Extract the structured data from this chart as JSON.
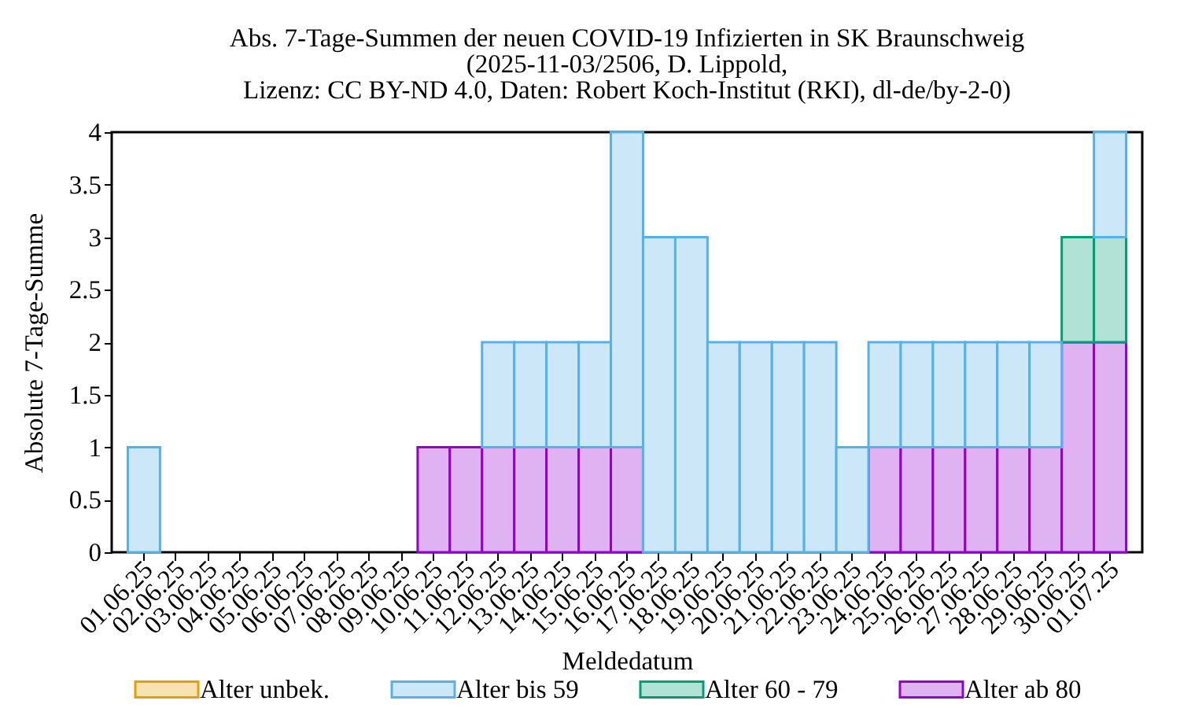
{
  "chart_data": {
    "type": "bar",
    "stacked": true,
    "title": "Abs. 7-Tage-Summen der neuen COVID-19 Infizierten in SK Braunschweig",
    "subtitle": "(2025-11-03/2506, D. Lippold,\nLizenz: CC BY-ND 4.0, Daten: Robert Koch-Institut (RKI), dl-de/by-2-0)",
    "xlabel": "Meldedatum",
    "ylabel": "Absolute 7-Tage-Summe",
    "categories": [
      "01.06.25",
      "02.06.25",
      "03.06.25",
      "04.06.25",
      "05.06.25",
      "06.06.25",
      "07.06.25",
      "08.06.25",
      "09.06.25",
      "10.06.25",
      "11.06.25",
      "12.06.25",
      "13.06.25",
      "14.06.25",
      "15.06.25",
      "16.06.25",
      "17.06.25",
      "18.06.25",
      "19.06.25",
      "20.06.25",
      "21.06.25",
      "22.06.25",
      "23.06.25",
      "24.06.25",
      "25.06.25",
      "26.06.25",
      "27.06.25",
      "28.06.25",
      "29.06.25",
      "30.06.25",
      "01.07.25"
    ],
    "series": [
      {
        "name": "Alter ab 80",
        "color": "#dfb2f2",
        "values": [
          0,
          0,
          0,
          0,
          0,
          0,
          0,
          0,
          0,
          1,
          1,
          1,
          1,
          1,
          1,
          1,
          0,
          0,
          0,
          0,
          0,
          0,
          0,
          1,
          1,
          1,
          1,
          1,
          1,
          2,
          2
        ]
      },
      {
        "name": "Alter 60 - 79",
        "color": "#b2e2d5",
        "values": [
          0,
          0,
          0,
          0,
          0,
          0,
          0,
          0,
          0,
          0,
          0,
          0,
          0,
          0,
          0,
          0,
          0,
          0,
          0,
          0,
          0,
          0,
          0,
          0,
          0,
          0,
          0,
          0,
          0,
          1,
          1
        ]
      },
      {
        "name": "Alter bis 59",
        "color": "#cce8f8",
        "values": [
          1,
          0,
          0,
          0,
          0,
          0,
          0,
          0,
          0,
          0,
          0,
          1,
          1,
          1,
          1,
          3,
          3,
          3,
          2,
          2,
          2,
          2,
          1,
          1,
          1,
          1,
          1,
          1,
          1,
          0,
          1
        ]
      },
      {
        "name": "Alter unbek.",
        "color": "#f8e2b2",
        "values": [
          0,
          0,
          0,
          0,
          0,
          0,
          0,
          0,
          0,
          0,
          0,
          0,
          0,
          0,
          0,
          0,
          0,
          0,
          0,
          0,
          0,
          0,
          0,
          0,
          0,
          0,
          0,
          0,
          0,
          0,
          0
        ]
      }
    ],
    "ylim": [
      0,
      4
    ],
    "yticks": [
      0,
      0.5,
      1,
      1.5,
      2,
      2.5,
      3,
      3.5,
      4
    ],
    "grid": false,
    "legend": "bottom"
  }
}
